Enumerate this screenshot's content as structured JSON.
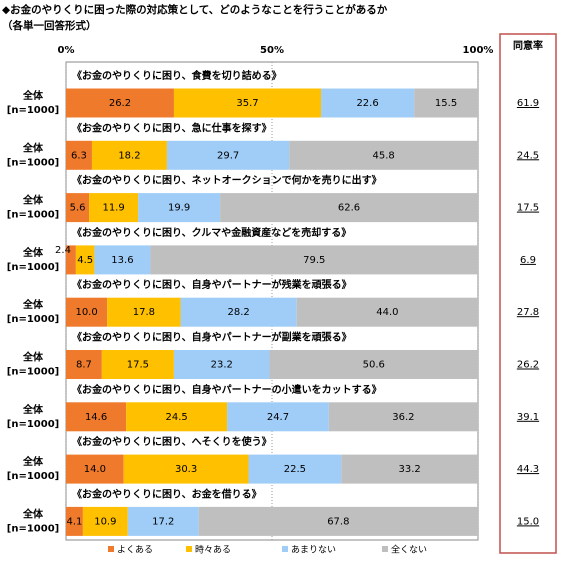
{
  "chart_data": {
    "type": "stacked-bar-horizontal",
    "title": "◆お金のやりくりに困った際の対応策として、どのようなことを行うことがあるか",
    "subtitle": "（各単一回答形式）",
    "categories": [
      "全体",
      "全体",
      "全体",
      "全体",
      "全体",
      "全体",
      "全体",
      "全体",
      "全体"
    ],
    "sample_labels": [
      "[n=1000]",
      "[n=1000]",
      "[n=1000]",
      "[n=1000]",
      "[n=1000]",
      "[n=1000]",
      "[n=1000]",
      "[n=1000]",
      "[n=1000]"
    ],
    "questions": [
      "《お金のやりくりに困り、食費を切り詰める》",
      "《お金のやりくりに困り、急に仕事を探す》",
      "《お金のやりくりに困り、ネットオークションで何かを売りに出す》",
      "《お金のやりくりに困り、クルマや金融資産などを売却する》",
      "《お金のやりくりに困り、自身やパートナーが残業を頑張る》",
      "《お金のやりくりに困り、自身やパートナーが副業を頑張る》",
      "《お金のやりくりに困り、自身やパートナーの小遣いをカットする》",
      "《お金のやりくりに困り、へそくりを使う》",
      "《お金のやりくりに困り、お金を借りる》"
    ],
    "series": [
      {
        "name": "よくある",
        "color": "#f07a2c",
        "values": [
          26.2,
          6.3,
          5.6,
          2.4,
          10.0,
          8.7,
          14.6,
          14.0,
          4.1
        ],
        "value_labels": [
          "26.2",
          "6.3",
          "5.6",
          "2.4",
          "10.0",
          "8.7",
          "14.6",
          "14.0",
          "4.1"
        ]
      },
      {
        "name": "時々ある",
        "color": "#ffc000",
        "values": [
          35.7,
          18.2,
          11.9,
          4.5,
          17.8,
          17.5,
          24.5,
          30.3,
          10.9
        ],
        "value_labels": [
          "35.7",
          "18.2",
          "11.9",
          "4.5",
          "17.8",
          "17.5",
          "24.5",
          "30.3",
          "10.9"
        ]
      },
      {
        "name": "あまりない",
        "color": "#9fcdf7",
        "values": [
          22.6,
          29.7,
          19.9,
          13.6,
          28.2,
          23.2,
          24.7,
          22.5,
          17.2
        ],
        "value_labels": [
          "22.6",
          "29.7",
          "19.9",
          "13.6",
          "28.2",
          "23.2",
          "24.7",
          "22.5",
          "17.2"
        ]
      },
      {
        "name": "全くない",
        "color": "#bfbfbf",
        "values": [
          15.5,
          45.8,
          62.6,
          79.5,
          44.0,
          50.6,
          36.2,
          33.2,
          67.8
        ],
        "value_labels": [
          "15.5",
          "45.8",
          "62.6",
          "79.5",
          "44.0",
          "50.6",
          "36.2",
          "33.2",
          "67.8"
        ]
      }
    ],
    "xlim": [
      0,
      100
    ],
    "xticks": [
      {
        "value": 0,
        "label": "0%"
      },
      {
        "value": 50,
        "label": "50%"
      },
      {
        "value": 100,
        "label": "100%"
      }
    ],
    "agree_rate": {
      "title": "同意率",
      "values": [
        61.9,
        24.5,
        17.5,
        6.9,
        27.8,
        26.2,
        39.1,
        44.3,
        15.0
      ],
      "value_labels": [
        "61.9",
        "24.5",
        "17.5",
        "6.9",
        "27.8",
        "26.2",
        "39.1",
        "44.3",
        "15.0"
      ]
    }
  }
}
